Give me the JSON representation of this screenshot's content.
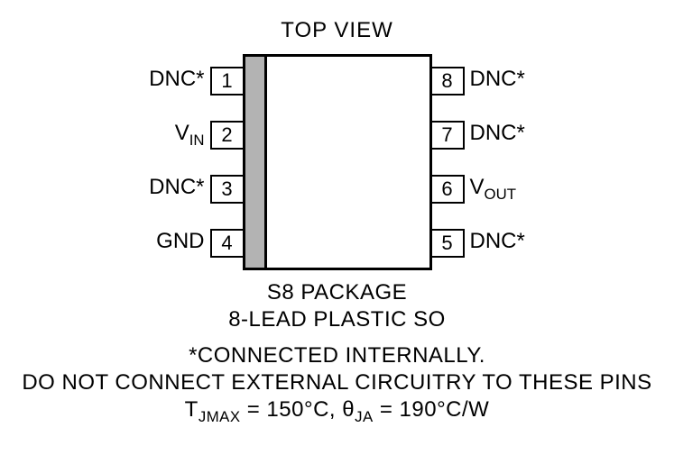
{
  "title": "TOP VIEW",
  "package_line1": "S8 PACKAGE",
  "package_line2": "8-LEAD PLASTIC SO",
  "note_line1": "*CONNECTED INTERNALLY.",
  "note_line2": "DO NOT CONNECT EXTERNAL CIRCUITRY TO THESE PINS",
  "thermal_prefix": "T",
  "thermal_sub1": "JMAX",
  "thermal_mid": " = 150°C, θ",
  "thermal_sub2": "JA",
  "thermal_suffix": " = 190°C/W",
  "left_pins": [
    {
      "num": "1",
      "label": "DNC*",
      "sub": ""
    },
    {
      "num": "2",
      "label": "V",
      "sub": "IN"
    },
    {
      "num": "3",
      "label": "DNC*",
      "sub": ""
    },
    {
      "num": "4",
      "label": "GND",
      "sub": ""
    }
  ],
  "right_pins": [
    {
      "num": "8",
      "label": "DNC*",
      "sub": ""
    },
    {
      "num": "7",
      "label": "DNC*",
      "sub": ""
    },
    {
      "num": "6",
      "label": "V",
      "sub": "OUT"
    },
    {
      "num": "5",
      "label": "DNC*",
      "sub": ""
    }
  ],
  "colors": {
    "notch": "#b3b3b3",
    "stroke": "#000000",
    "bg": "#ffffff"
  }
}
